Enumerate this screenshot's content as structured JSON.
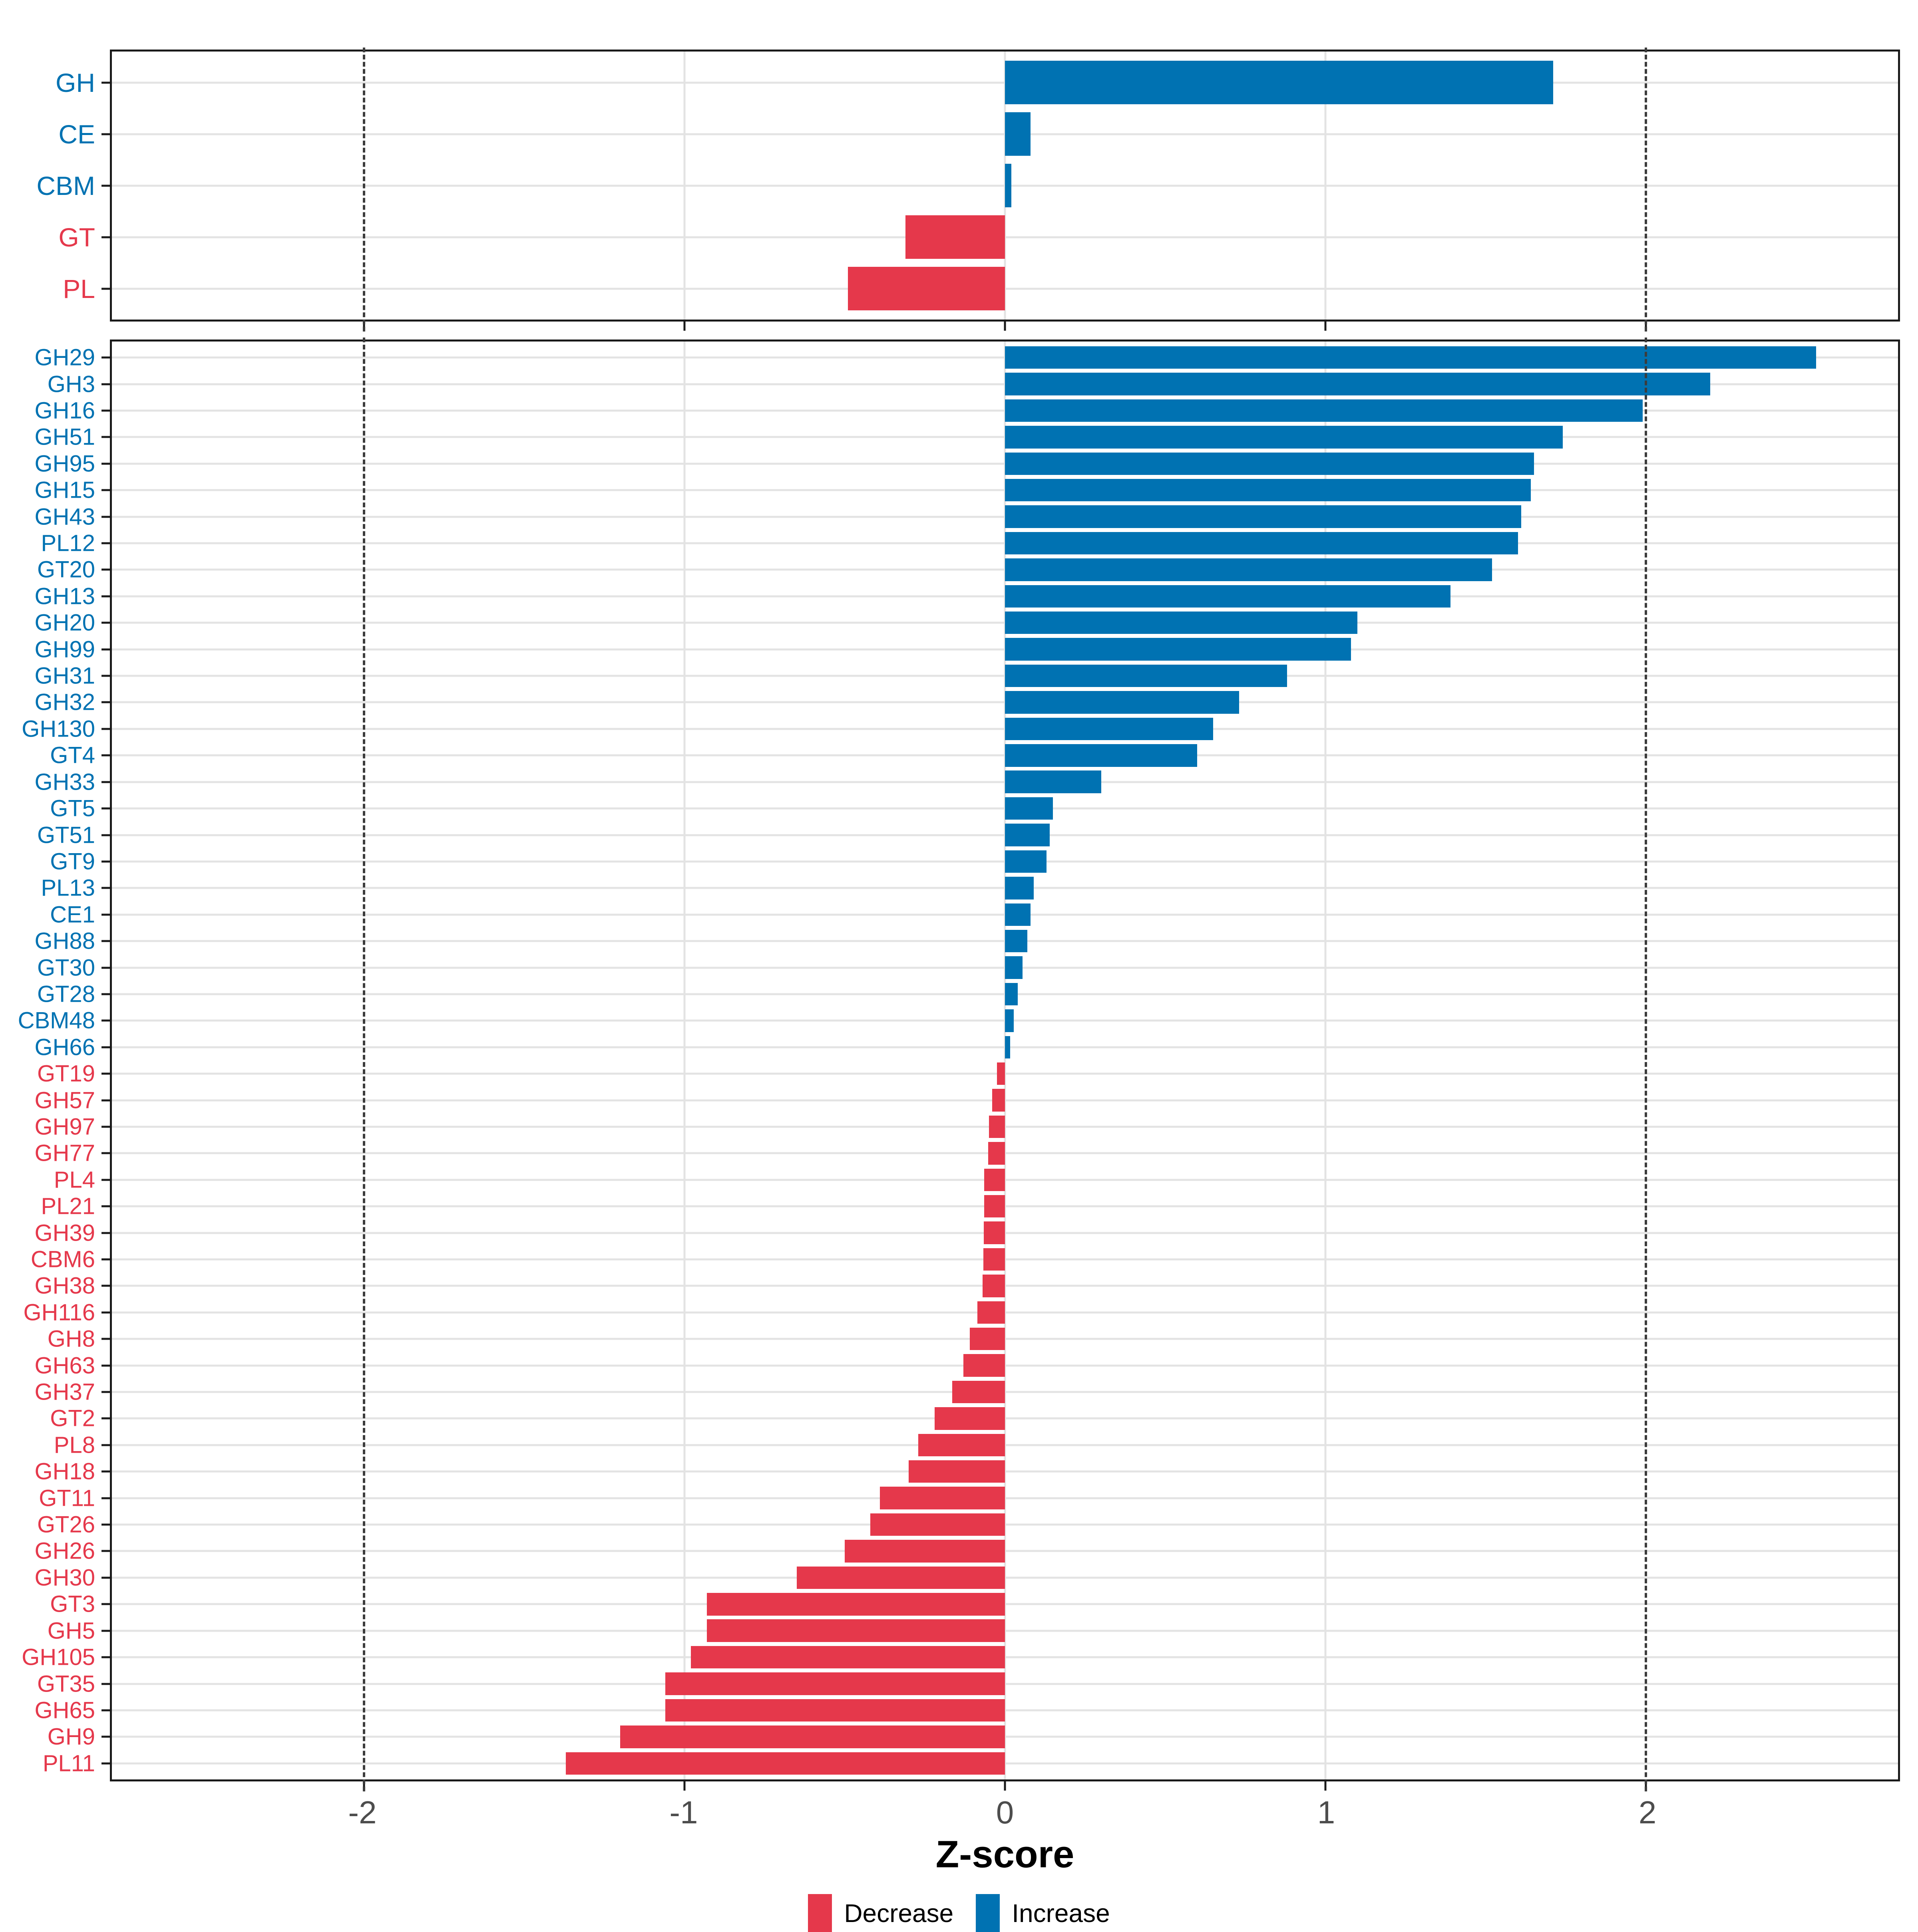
{
  "axis": {
    "label": "Z-score",
    "ticks": [
      "-2",
      "-1",
      "0",
      "1",
      "2"
    ],
    "tick_values": [
      -2,
      -1,
      0,
      1,
      2
    ],
    "domain": [
      -2.786,
      2.786
    ],
    "light_gridlines": [
      -1,
      0,
      1
    ],
    "dashed_lines": [
      -2,
      2
    ]
  },
  "colors": {
    "increase": "#0072B2",
    "decrease": "#E5384B",
    "grid": "#E3E3E3",
    "dashed_line": "#3C3C3C",
    "axis_text": "#4D4D4D",
    "panel_border": "#1A1A1A"
  },
  "legend": {
    "items": [
      {
        "label": "Decrease",
        "color": "#E5384B"
      },
      {
        "label": "Increase",
        "color": "#0072B2"
      }
    ]
  },
  "chart_data": [
    {
      "type": "bar",
      "orientation": "horizontal",
      "panel": "family-level",
      "xlabel": "Z-score",
      "xlim": [
        -2.786,
        2.786
      ],
      "grid": "on",
      "legend_position": "bottom",
      "categories": [
        "GH",
        "CE",
        "CBM",
        "GT",
        "PL"
      ],
      "values": [
        1.71,
        0.08,
        0.02,
        -0.31,
        -0.49
      ]
    },
    {
      "type": "bar",
      "orientation": "horizontal",
      "panel": "subfamily-level",
      "xlabel": "Z-score",
      "xlim": [
        -2.786,
        2.786
      ],
      "grid": "on",
      "legend_position": "bottom",
      "categories": [
        "GH29",
        "GH3",
        "GH16",
        "GH51",
        "GH95",
        "GH15",
        "GH43",
        "PL12",
        "GT20",
        "GH13",
        "GH20",
        "GH99",
        "GH31",
        "GH32",
        "GH130",
        "GT4",
        "GH33",
        "GT5",
        "GT51",
        "GT9",
        "PL13",
        "CE1",
        "GH88",
        "GT30",
        "GT28",
        "CBM48",
        "GH66",
        "GT19",
        "GH57",
        "GH97",
        "GH77",
        "PL4",
        "PL21",
        "GH39",
        "CBM6",
        "GH38",
        "GH116",
        "GH8",
        "GH63",
        "GH37",
        "GT2",
        "PL8",
        "GH18",
        "GT11",
        "GT26",
        "GH26",
        "GH30",
        "GT3",
        "GH5",
        "GH105",
        "GT35",
        "GH65",
        "GH9",
        "PL11"
      ],
      "values": [
        2.53,
        2.2,
        1.99,
        1.74,
        1.65,
        1.64,
        1.61,
        1.6,
        1.52,
        1.39,
        1.1,
        1.08,
        0.88,
        0.73,
        0.65,
        0.6,
        0.3,
        0.15,
        0.14,
        0.13,
        0.09,
        0.08,
        0.07,
        0.055,
        0.04,
        0.028,
        0.016,
        -0.025,
        -0.04,
        -0.05,
        -0.052,
        -0.065,
        -0.065,
        -0.066,
        -0.067,
        -0.07,
        -0.086,
        -0.11,
        -0.13,
        -0.165,
        -0.22,
        -0.27,
        -0.3,
        -0.39,
        -0.42,
        -0.5,
        -0.65,
        -0.93,
        -0.93,
        -0.98,
        -1.06,
        -1.06,
        -1.2,
        -1.37
      ]
    }
  ]
}
